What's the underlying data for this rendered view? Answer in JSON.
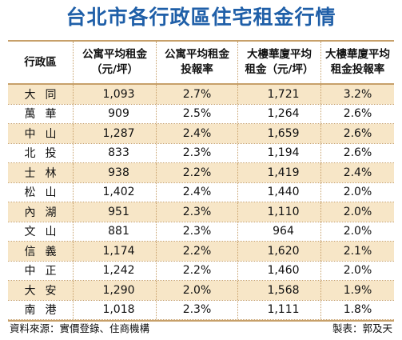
{
  "title": "台北市各行政區住宅租金行情",
  "headers": [
    "行政區",
    "公寓平均租金\n（元/坪）",
    "公寓平均租金\n投報率",
    "大樓華廈平均\n租金（元/坪）",
    "大樓華廈平均\n租金投報率"
  ],
  "rows": [
    {
      "district": "大同",
      "apt_rent": "1,093",
      "apt_yield": "2.7%",
      "bldg_rent": "1,721",
      "bldg_yield": "3.2%"
    },
    {
      "district": "萬華",
      "apt_rent": "909",
      "apt_yield": "2.5%",
      "bldg_rent": "1,264",
      "bldg_yield": "2.6%"
    },
    {
      "district": "中山",
      "apt_rent": "1,287",
      "apt_yield": "2.4%",
      "bldg_rent": "1,659",
      "bldg_yield": "2.6%"
    },
    {
      "district": "北投",
      "apt_rent": "833",
      "apt_yield": "2.3%",
      "bldg_rent": "1,194",
      "bldg_yield": "2.6%"
    },
    {
      "district": "士林",
      "apt_rent": "938",
      "apt_yield": "2.2%",
      "bldg_rent": "1,419",
      "bldg_yield": "2.4%"
    },
    {
      "district": "松山",
      "apt_rent": "1,402",
      "apt_yield": "2.4%",
      "bldg_rent": "1,440",
      "bldg_yield": "2.0%"
    },
    {
      "district": "內湖",
      "apt_rent": "951",
      "apt_yield": "2.3%",
      "bldg_rent": "1,110",
      "bldg_yield": "2.0%"
    },
    {
      "district": "文山",
      "apt_rent": "881",
      "apt_yield": "2.3%",
      "bldg_rent": "964",
      "bldg_yield": "2.0%"
    },
    {
      "district": "信義",
      "apt_rent": "1,174",
      "apt_yield": "2.2%",
      "bldg_rent": "1,620",
      "bldg_yield": "2.1%"
    },
    {
      "district": "中正",
      "apt_rent": "1,242",
      "apt_yield": "2.2%",
      "bldg_rent": "1,460",
      "bldg_yield": "2.0%"
    },
    {
      "district": "大安",
      "apt_rent": "1,290",
      "apt_yield": "2.0%",
      "bldg_rent": "1,568",
      "bldg_yield": "1.9%"
    },
    {
      "district": "南港",
      "apt_rent": "1,018",
      "apt_yield": "2.3%",
      "bldg_rent": "1,111",
      "bldg_yield": "1.8%"
    }
  ],
  "footer": {
    "source": "資料來源：實價登錄、住商機構",
    "credit": "製表：郭及天"
  },
  "colors": {
    "title": "#1f5fa8",
    "stripe": "#f7e6c7",
    "rule": "#c7a06a"
  }
}
